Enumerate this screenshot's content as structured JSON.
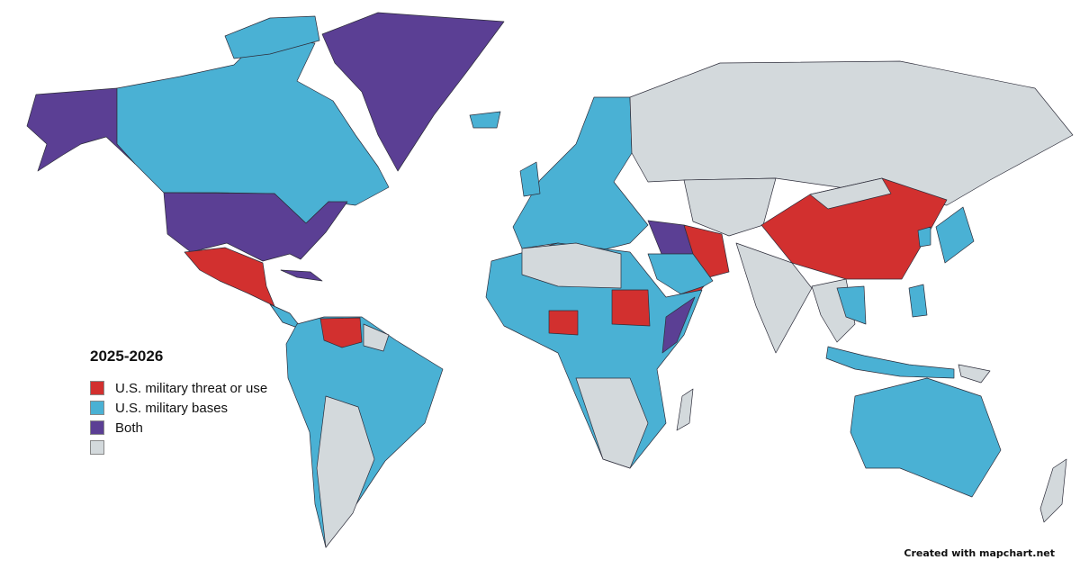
{
  "legend": {
    "title": "2025-2026",
    "items": [
      {
        "label": "U.S. military threat or use",
        "color": "#d2302f"
      },
      {
        "label": "U.S. military bases",
        "color": "#4ab1d4"
      },
      {
        "label": "Both",
        "color": "#5b3f94"
      },
      {
        "label": "",
        "color": "#d3d9dc"
      }
    ]
  },
  "colors": {
    "threat": "#d2302f",
    "bases": "#4ab1d4",
    "both": "#5b3f94",
    "none": "#d3d9dc",
    "border": "#2d2d3a"
  },
  "credit": "Created with mapchart.net"
}
